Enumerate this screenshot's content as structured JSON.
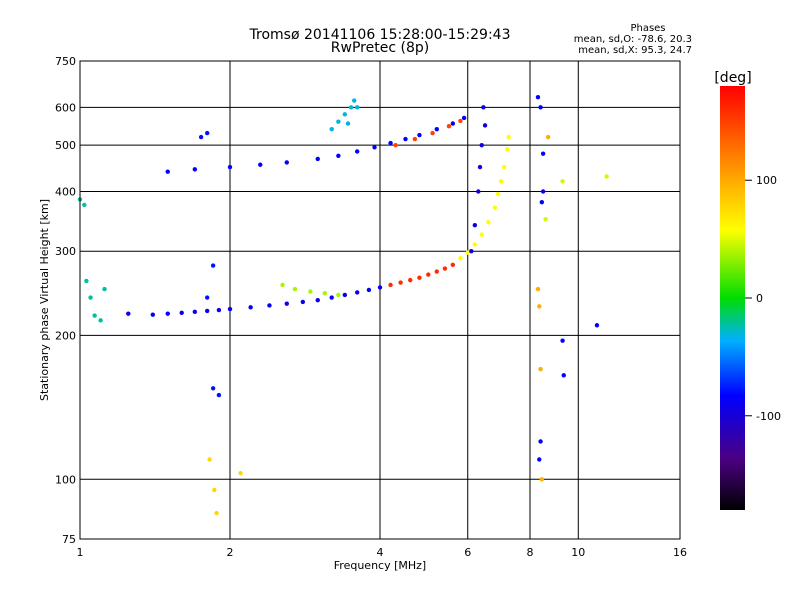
{
  "chart_data": {
    "type": "scatter",
    "title": "Tromsø 20141106 15:28:00-15:29:43",
    "subtitle": "RwPretec (8p)",
    "stats": {
      "heading": "Phases",
      "line1": "mean, sd,O: -78.6, 20.3",
      "line2": "mean, sd,X:  95.3, 24.7"
    },
    "xlabel": "Frequency [MHz]",
    "ylabel": "Stationary phase Virtual Height [km]",
    "x_scale": "log",
    "y_scale": "log",
    "xlim": [
      1,
      16
    ],
    "ylim": [
      75,
      750
    ],
    "x_ticks": [
      1,
      2,
      4,
      6,
      8,
      10,
      16
    ],
    "x_tick_labels": [
      "1",
      "2",
      "4",
      "6",
      "8",
      "10",
      "16"
    ],
    "y_ticks": [
      75,
      100,
      200,
      300,
      400,
      500,
      600,
      750
    ],
    "y_tick_labels": [
      "75",
      "100",
      "200",
      "300",
      "400",
      "500",
      "600",
      "750"
    ],
    "grid": true,
    "colorbar": {
      "label": "[deg]",
      "range": [
        -180,
        180
      ],
      "ticks": [
        100,
        0,
        -100
      ],
      "tick_labels": [
        "100",
        "0",
        "-100"
      ]
    },
    "series": [
      {
        "phase": -95,
        "points": [
          [
            1.25,
            222
          ],
          [
            1.4,
            221
          ],
          [
            1.5,
            222
          ],
          [
            1.6,
            223
          ],
          [
            1.7,
            224
          ],
          [
            1.8,
            225
          ],
          [
            1.9,
            226
          ],
          [
            2.0,
            227
          ],
          [
            2.2,
            229
          ],
          [
            2.4,
            231
          ],
          [
            2.6,
            233
          ],
          [
            2.8,
            235
          ],
          [
            3.0,
            237
          ],
          [
            3.2,
            240
          ],
          [
            3.4,
            243
          ],
          [
            3.6,
            246
          ],
          [
            3.8,
            249
          ],
          [
            4.0,
            252
          ]
        ]
      },
      {
        "phase": 160,
        "points": [
          [
            4.2,
            255
          ],
          [
            4.4,
            258
          ],
          [
            4.6,
            261
          ],
          [
            4.8,
            264
          ],
          [
            5.0,
            268
          ],
          [
            5.2,
            272
          ],
          [
            5.4,
            276
          ],
          [
            5.6,
            281
          ]
        ]
      },
      {
        "phase": 60,
        "points": [
          [
            5.8,
            290
          ],
          [
            6.0,
            298
          ],
          [
            6.2,
            310
          ],
          [
            6.4,
            325
          ],
          [
            6.6,
            345
          ],
          [
            6.8,
            370
          ],
          [
            6.9,
            395
          ],
          [
            7.0,
            420
          ],
          [
            7.1,
            450
          ],
          [
            7.2,
            490
          ],
          [
            7.25,
            520
          ]
        ]
      },
      {
        "phase": -90,
        "points": [
          [
            1.5,
            440
          ],
          [
            1.7,
            445
          ],
          [
            2.0,
            450
          ],
          [
            2.3,
            455
          ],
          [
            2.6,
            460
          ],
          [
            3.0,
            468
          ],
          [
            3.3,
            475
          ],
          [
            3.6,
            485
          ],
          [
            3.9,
            495
          ],
          [
            4.2,
            505
          ],
          [
            4.5,
            515
          ],
          [
            4.8,
            525
          ],
          [
            5.2,
            540
          ],
          [
            5.6,
            555
          ],
          [
            5.9,
            570
          ]
        ]
      },
      {
        "phase": 150,
        "points": [
          [
            4.3,
            500
          ],
          [
            4.7,
            515
          ],
          [
            5.1,
            530
          ],
          [
            5.5,
            548
          ],
          [
            5.8,
            562
          ]
        ]
      },
      {
        "phase": -35,
        "points": [
          [
            3.2,
            540
          ],
          [
            3.3,
            560
          ],
          [
            3.4,
            580
          ],
          [
            3.5,
            600
          ],
          [
            3.55,
            620
          ],
          [
            3.6,
            600
          ],
          [
            3.45,
            555
          ]
        ]
      },
      {
        "phase": -100,
        "points": [
          [
            6.1,
            300
          ],
          [
            6.2,
            340
          ],
          [
            6.3,
            400
          ],
          [
            6.35,
            450
          ],
          [
            6.4,
            500
          ],
          [
            6.5,
            550
          ],
          [
            6.45,
            600
          ]
        ]
      },
      {
        "phase": 40,
        "points": [
          [
            2.55,
            255
          ],
          [
            2.7,
            250
          ],
          [
            2.9,
            247
          ],
          [
            3.1,
            245
          ],
          [
            3.3,
            243
          ]
        ]
      },
      {
        "phase": -25,
        "points": [
          [
            1.0,
            385
          ],
          [
            1.02,
            375
          ],
          [
            1.03,
            260
          ],
          [
            1.05,
            240
          ],
          [
            1.07,
            220
          ],
          [
            1.1,
            215
          ],
          [
            1.12,
            250
          ]
        ]
      },
      {
        "phase": -85,
        "points": [
          [
            1.85,
            155
          ],
          [
            1.9,
            150
          ],
          [
            1.8,
            240
          ],
          [
            1.85,
            280
          ],
          [
            1.75,
            520
          ],
          [
            1.8,
            530
          ]
        ]
      },
      {
        "phase": 80,
        "points": [
          [
            1.82,
            110
          ],
          [
            1.86,
            95
          ],
          [
            1.88,
            85
          ],
          [
            2.1,
            103
          ]
        ]
      },
      {
        "phase": -90,
        "points": [
          [
            8.3,
            630
          ],
          [
            8.4,
            600
          ],
          [
            8.5,
            480
          ],
          [
            8.5,
            400
          ],
          [
            8.45,
            380
          ],
          [
            8.4,
            120
          ],
          [
            8.35,
            110
          ],
          [
            9.3,
            195
          ],
          [
            9.35,
            165
          ],
          [
            10.9,
            210
          ]
        ]
      },
      {
        "phase": 100,
        "points": [
          [
            8.3,
            250
          ],
          [
            8.35,
            230
          ],
          [
            8.4,
            170
          ],
          [
            8.45,
            100
          ],
          [
            8.7,
            520
          ]
        ]
      },
      {
        "phase": 50,
        "points": [
          [
            9.3,
            420
          ],
          [
            8.6,
            350
          ],
          [
            11.4,
            430
          ]
        ]
      }
    ]
  }
}
